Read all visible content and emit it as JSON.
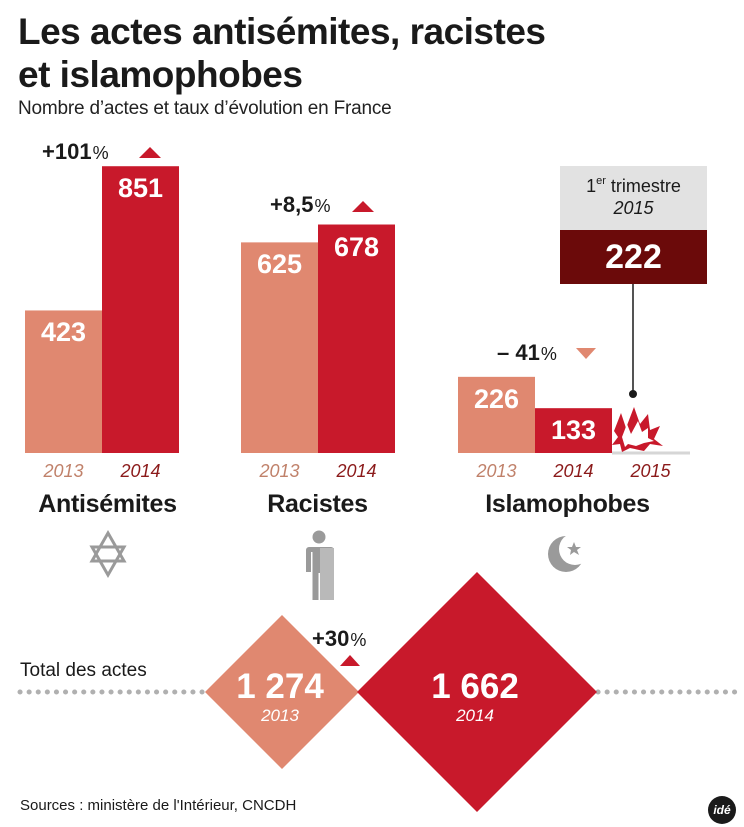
{
  "header": {
    "title_line1": "Les actes antisémites, racistes",
    "title_line2": "et islamophobes",
    "subtitle": "Nombre d’actes et taux d’évolution en France"
  },
  "colors": {
    "light_bar": "#e08870",
    "dark_bar": "#c8192b",
    "quarter_box": "#6b0a0a",
    "year_2013": "#c0816a",
    "year_2014": "#8b1a1a",
    "icons": "#9a9a9a",
    "dots": "#b0b0b0"
  },
  "chart_data": {
    "type": "bar",
    "title": "Les actes antisémites, racistes et islamophobes",
    "subtitle": "Nombre d’actes et taux d’évolution en France",
    "categories": [
      "Antisémites",
      "Racistes",
      "Islamophobes"
    ],
    "series": [
      {
        "name": "2013",
        "values": [
          423,
          625,
          226
        ]
      },
      {
        "name": "2014",
        "values": [
          851,
          678,
          133
        ]
      }
    ],
    "evolution": [
      {
        "value": "+101",
        "unit": "%",
        "direction": "up"
      },
      {
        "value": "+8,5",
        "unit": "%",
        "direction": "up"
      },
      {
        "value": "– 41",
        "unit": "%",
        "direction": "down"
      }
    ],
    "year_labels": [
      "2013",
      "2014",
      "2015"
    ],
    "quarter_callout": {
      "line1_prefix": "1",
      "line1_sup": "er",
      "line1_suffix": " trimestre",
      "line2": "2015",
      "value": "222"
    },
    "category_icons": [
      "star-of-david-icon",
      "person-icon",
      "crescent-star-icon"
    ],
    "totals": {
      "label": "Total des actes",
      "items": [
        {
          "value": "1 274",
          "year": "2013"
        },
        {
          "value": "1 662",
          "year": "2014"
        }
      ],
      "evolution": {
        "value": "+30",
        "unit": "%",
        "direction": "up"
      }
    }
  },
  "footer": {
    "source": "Sources : ministère de l'Intérieur, CNCDH",
    "logo_text": "idé"
  }
}
